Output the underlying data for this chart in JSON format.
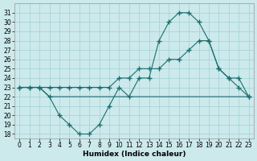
{
  "xlabel": "Humidex (Indice chaleur)",
  "background_color": "#cce9ec",
  "grid_color": "#a8d4d8",
  "line_color": "#1a6e6e",
  "x": [
    0,
    1,
    2,
    3,
    4,
    5,
    6,
    7,
    8,
    9,
    10,
    11,
    12,
    13,
    14,
    15,
    16,
    17,
    18,
    19,
    20,
    21,
    22,
    23
  ],
  "series1_y": [
    23,
    23,
    23,
    22,
    20,
    19,
    18,
    18,
    19,
    21,
    23,
    22,
    24,
    24,
    28,
    30,
    31,
    31,
    30,
    28,
    25,
    24,
    23,
    22
  ],
  "series1_markers": true,
  "series2_y": [
    23,
    23,
    23,
    23,
    23,
    23,
    23,
    23,
    23,
    23,
    24,
    24,
    25,
    25,
    25,
    26,
    26,
    27,
    28,
    28,
    25,
    24,
    24,
    22
  ],
  "series2_markers": true,
  "series3_y": [
    23,
    23,
    23,
    22,
    22,
    22,
    22,
    22,
    22,
    22,
    22,
    22,
    22,
    22,
    22,
    22,
    22,
    22,
    22,
    22,
    22,
    22,
    22,
    22
  ],
  "series3_markers": false,
  "ylim_min": 17.5,
  "ylim_max": 32,
  "xlim_min": -0.5,
  "xlim_max": 23.5,
  "yticks": [
    18,
    19,
    20,
    21,
    22,
    23,
    24,
    25,
    26,
    27,
    28,
    29,
    30,
    31
  ],
  "xticks": [
    0,
    1,
    2,
    3,
    4,
    5,
    6,
    7,
    8,
    9,
    10,
    11,
    12,
    13,
    14,
    15,
    16,
    17,
    18,
    19,
    20,
    21,
    22,
    23
  ],
  "tick_fontsize": 5.5,
  "xlabel_fontsize": 6.5
}
